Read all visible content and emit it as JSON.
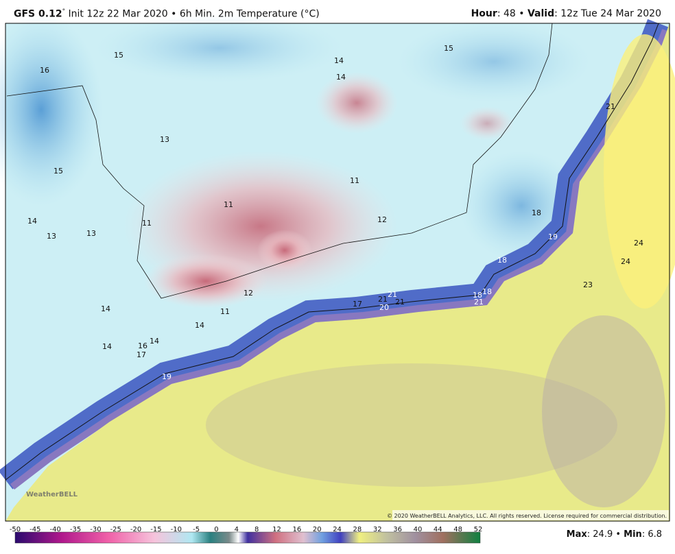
{
  "header": {
    "model": "GFS 0.12",
    "model_sup": "°",
    "title": "Init 12z 22 Mar 2020 • 6h Min. 2m Temperature (°C)",
    "hour_label": "Hour",
    "hour_value": ": 48 • ",
    "valid_label": "Valid",
    "valid_value": ": 12z Tue 24 Mar 2020"
  },
  "map": {
    "labels": [
      "15",
      "16",
      "14",
      "14",
      "15",
      "21",
      "13",
      "15",
      "11",
      "11",
      "14",
      "11",
      "13",
      "13",
      "12",
      "18",
      "19",
      "24",
      "18",
      "24",
      "23",
      "12",
      "18",
      "18",
      "17",
      "21",
      "21",
      "21",
      "20",
      "21",
      "14",
      "11",
      "14",
      "14",
      "16",
      "14",
      "17",
      "19"
    ],
    "watermark": "WeatherBELL",
    "copyright": "© 2020 WeatherBELL Analytics, LLC. All rights reserved. License required for commercial distribution."
  },
  "colorbar": {
    "ticks": [
      "-50",
      "-45",
      "-40",
      "-35",
      "-30",
      "-25",
      "-20",
      "-15",
      "-10",
      "-5",
      "0",
      "4",
      "8",
      "12",
      "16",
      "20",
      "24",
      "28",
      "32",
      "36",
      "40",
      "44",
      "48",
      "52"
    ]
  },
  "footer": {
    "max_label": "Max",
    "max_value": ": 24.9 • ",
    "min_label": "Min",
    "min_value": ": 6.8"
  }
}
